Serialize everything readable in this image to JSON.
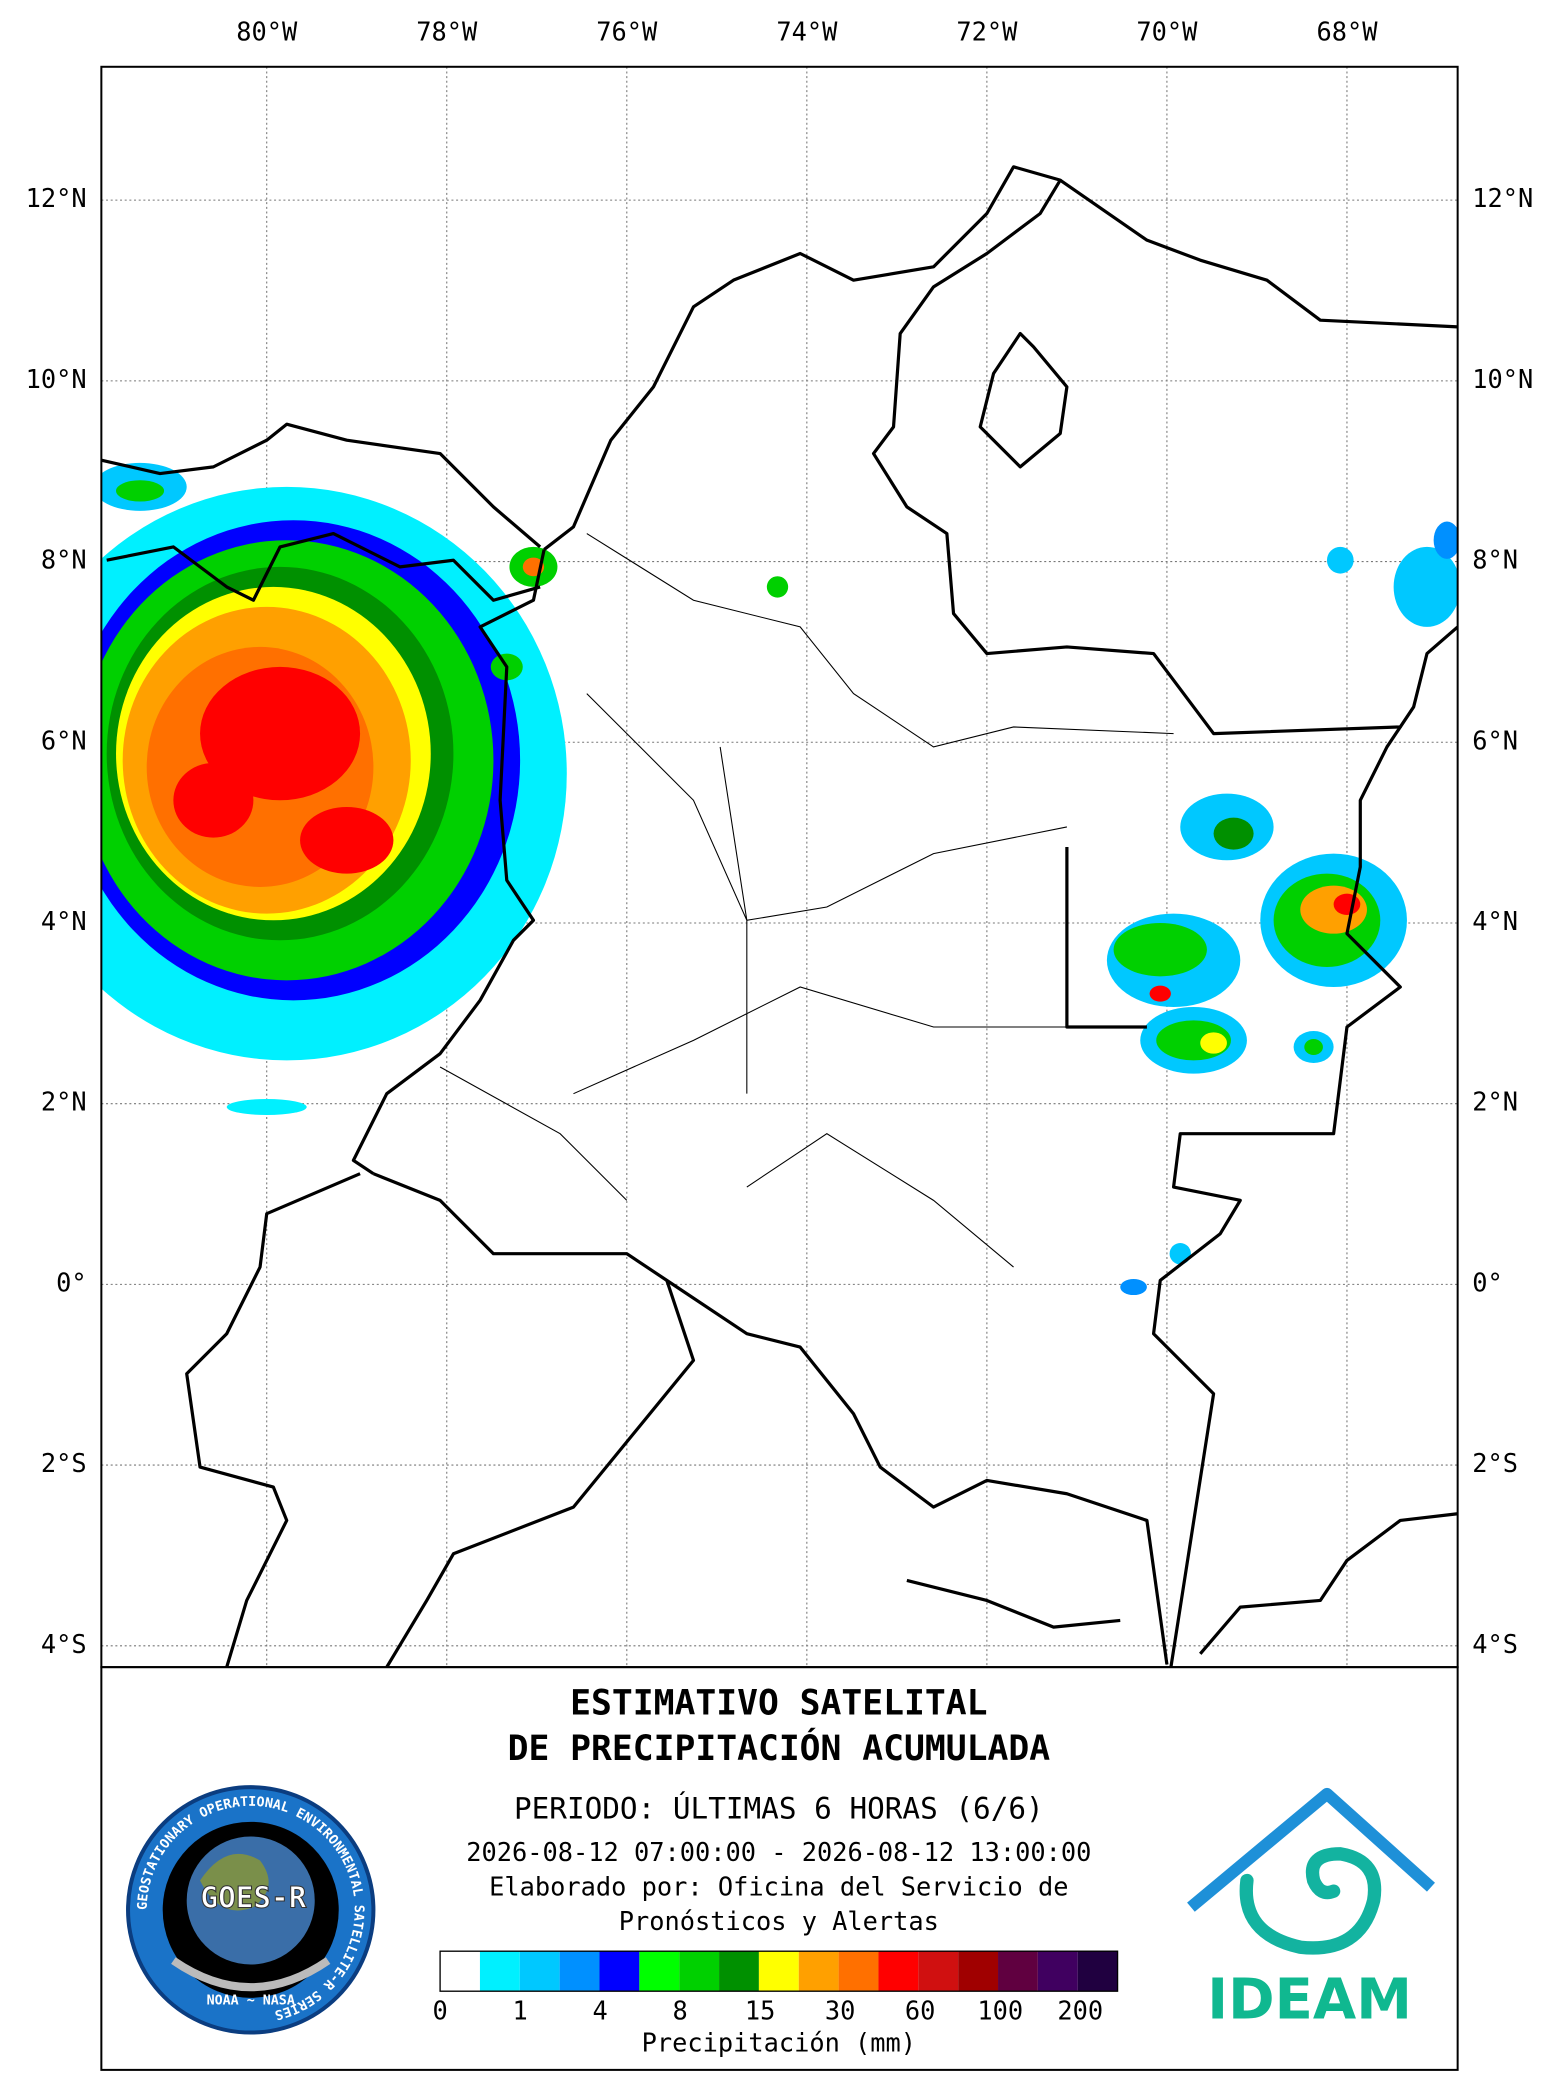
{
  "map": {
    "lon_ticks": [
      {
        "value": -80,
        "label": "80°W"
      },
      {
        "value": -78,
        "label": "78°W"
      },
      {
        "value": -76,
        "label": "76°W"
      },
      {
        "value": -74,
        "label": "74°W"
      },
      {
        "value": -72,
        "label": "72°W"
      },
      {
        "value": -70,
        "label": "70°W"
      },
      {
        "value": -68,
        "label": "68°W"
      }
    ],
    "lat_ticks": [
      {
        "value": 12,
        "label": "12°N"
      },
      {
        "value": 10,
        "label": "10°N"
      },
      {
        "value": 8,
        "label": "8°N"
      },
      {
        "value": 6,
        "label": "6°N"
      },
      {
        "value": 4,
        "label": "4°N"
      },
      {
        "value": 2,
        "label": "2°N"
      },
      {
        "value": 0,
        "label": "0°"
      },
      {
        "value": -2,
        "label": "2°S"
      },
      {
        "value": -4,
        "label": "4°S"
      }
    ]
  },
  "title": [
    "ESTIMATIVO SATELITAL",
    "DE PRECIPITACIÓN ACUMULADA"
  ],
  "period": "PERIODO: ÚLTIMAS 6 HORAS (6/6)",
  "date_range": "2026-08-12 07:00:00 - 2026-08-12 13:00:00",
  "credit": [
    "Elaborado por: Oficina del Servicio de",
    "Pronósticos y Alertas"
  ],
  "colorbar": {
    "colors": [
      "#ffffff",
      "#00f0ff",
      "#00c8ff",
      "#0090ff",
      "#0000ff",
      "#00ff00",
      "#00d000",
      "#009000",
      "#ffff00",
      "#ffa000",
      "#ff7000",
      "#ff0000",
      "#d01010",
      "#a00000",
      "#600040",
      "#400060",
      "#200040"
    ],
    "ticks": [
      0,
      1,
      4,
      8,
      15,
      30,
      60,
      100,
      200
    ],
    "label": "Precipitación (mm)"
  },
  "logos": {
    "goes_ring": "GEOSTATIONARY OPERATIONAL ENVIRONMENTAL SATELLITE-R SERIES",
    "goes": "GOES-R",
    "goes_footer": "NOAA ~ NASA",
    "ideam": "IDEAM"
  }
}
